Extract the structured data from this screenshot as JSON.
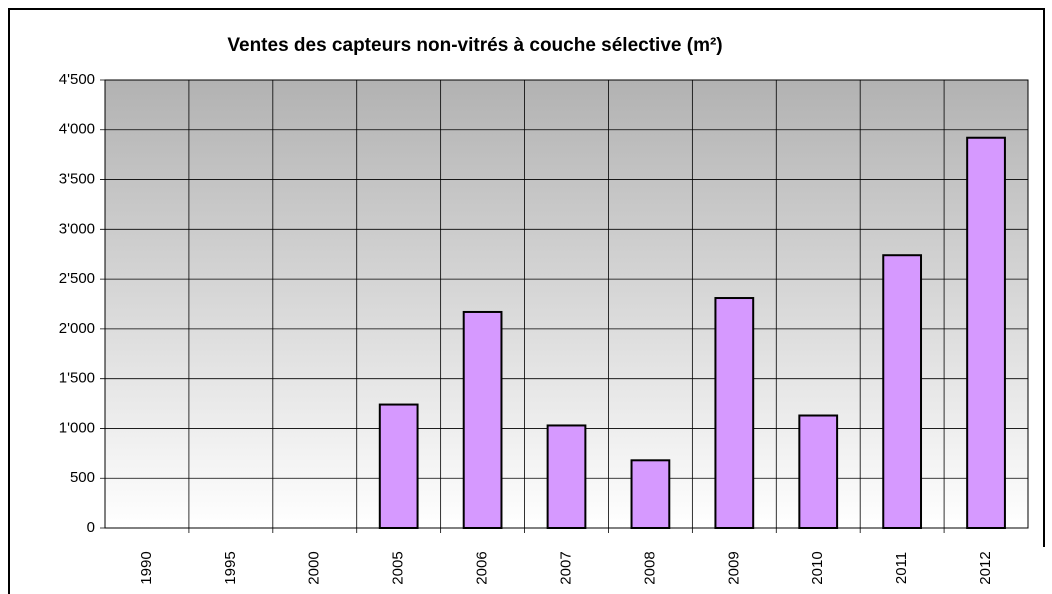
{
  "chart_data": {
    "type": "bar",
    "title": "Ventes des capteurs non-vitrés à couche sélective (m²)",
    "categories": [
      "1990",
      "1995",
      "2000",
      "2005",
      "2006",
      "2007",
      "2008",
      "2009",
      "2010",
      "2011",
      "2012"
    ],
    "values": [
      0,
      0,
      0,
      1240,
      2170,
      1030,
      680,
      2310,
      1130,
      2740,
      3920
    ],
    "color": "#d699ff",
    "ylim": [
      0,
      4500
    ],
    "yticks": [
      0,
      500,
      {
        "value": 1000,
        "label": "1'000"
      },
      {
        "value": 1500,
        "label": "1'500"
      },
      {
        "value": 2000,
        "label": "2'000"
      },
      {
        "value": 2500,
        "label": "2'500"
      },
      {
        "value": 3000,
        "label": "3'000"
      },
      {
        "value": 3500,
        "label": "3'500"
      },
      {
        "value": 4000,
        "label": "4'000"
      },
      {
        "value": 4500,
        "label": "4'500"
      }
    ],
    "grid": true
  }
}
